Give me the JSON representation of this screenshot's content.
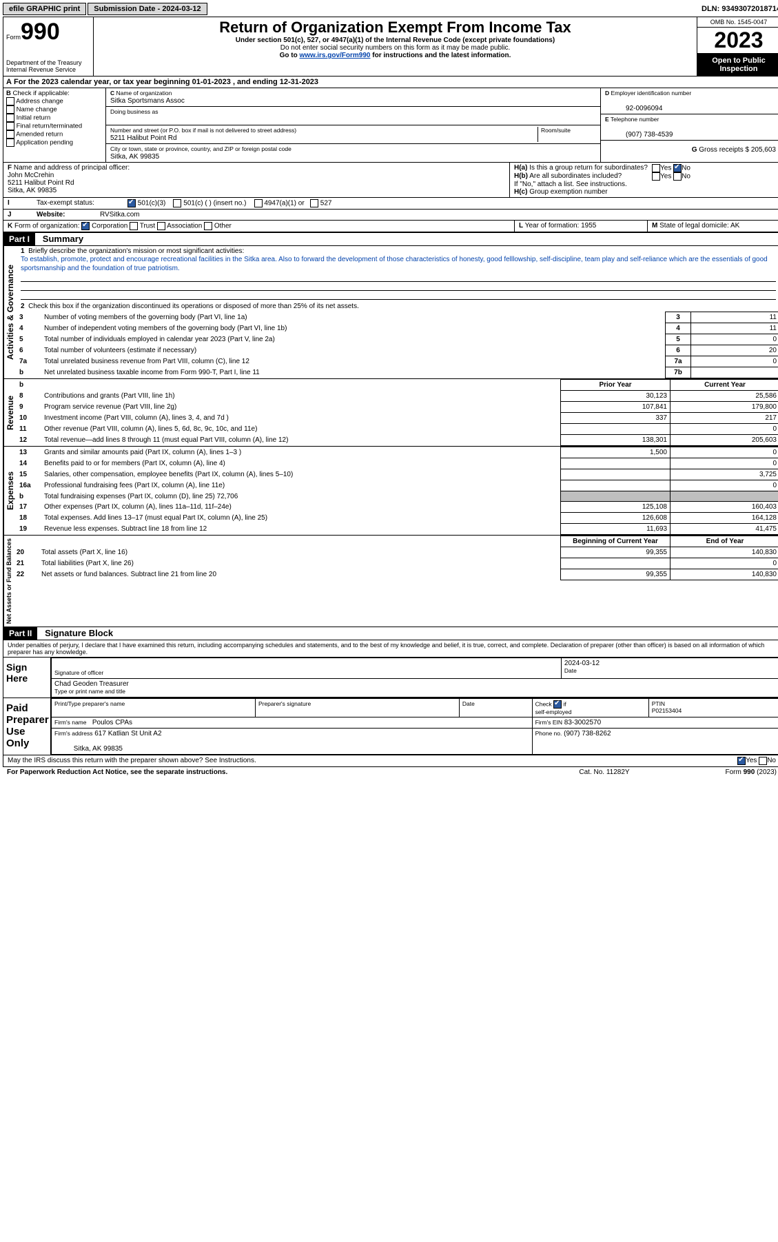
{
  "topbar": {
    "efile": "efile GRAPHIC print",
    "submission_label": "Submission Date - 2024-03-12",
    "dln": "DLN: 93493072018714"
  },
  "header": {
    "form_prefix": "Form",
    "form_number": "990",
    "dept": "Department of the Treasury",
    "irs": "Internal Revenue Service",
    "title": "Return of Organization Exempt From Income Tax",
    "subtitle": "Under section 501(c), 527, or 4947(a)(1) of the Internal Revenue Code (except private foundations)",
    "ssn_note": "Do not enter social security numbers on this form as it may be made public.",
    "goto": "Go to ",
    "goto_link": "www.irs.gov/Form990",
    "goto_suffix": " for instructions and the latest information.",
    "omb": "OMB No. 1545-0047",
    "year": "2023",
    "inspect": "Open to Public Inspection"
  },
  "a": {
    "text": "For the 2023 calendar year, or tax year beginning 01-01-2023   , and ending 12-31-2023"
  },
  "b": {
    "label": "Check if applicable:",
    "items": [
      "Address change",
      "Name change",
      "Initial return",
      "Final return/terminated",
      "Amended return",
      "Application pending"
    ]
  },
  "c": {
    "name_label": "Name of organization",
    "name": "Sitka Sportsmans Assoc",
    "dba_label": "Doing business as",
    "dba": "",
    "street_label": "Number and street (or P.O. box if mail is not delivered to street address)",
    "suite_label": "Room/suite",
    "street": "5211 Halibut Point Rd",
    "city_label": "City or town, state or province, country, and ZIP or foreign postal code",
    "city": "Sitka, AK  99835"
  },
  "d": {
    "label": "Employer identification number",
    "value": "92-0096094"
  },
  "e": {
    "label": "Telephone number",
    "value": "(907) 738-4539"
  },
  "g": {
    "label": "Gross receipts $",
    "value": "205,603"
  },
  "f": {
    "label": "Name and address of principal officer:",
    "name": "John McCrehin",
    "street": "5211 Halibut Point Rd",
    "city": "Sitka, AK  99835"
  },
  "h": {
    "a_label": "Is this a group return for subordinates?",
    "b_label": "Are all subordinates included?",
    "ifno": "If \"No,\" attach a list. See instructions.",
    "c_label": "Group exemption number",
    "yes": "Yes",
    "no": "No"
  },
  "i": {
    "label": "Tax-exempt status:",
    "opt1": "501(c)(3)",
    "opt2": "501(c) (  ) (insert no.)",
    "opt3": "4947(a)(1) or",
    "opt4": "527"
  },
  "j": {
    "label": "Website:",
    "value": "RVSitka.com"
  },
  "k": {
    "label": "Form of organization:",
    "corp": "Corporation",
    "trust": "Trust",
    "assoc": "Association",
    "other": "Other"
  },
  "l": {
    "label": "Year of formation:",
    "value": "1955"
  },
  "m": {
    "label": "State of legal domicile:",
    "value": "AK"
  },
  "part1": {
    "header": "Part I",
    "title": "Summary"
  },
  "mission": {
    "label": "Briefly describe the organization's mission or most significant activities:",
    "text": "To establish, promote, protect and encourage recreational facilities in the Sitka area. Also to forward the development of those characteristics of honesty, good felllowship, self-discipline, team play and self-reliance which are the essentials of good sportsmanship and the foundation of true patriotism."
  },
  "line2": "Check this box      if the organization discontinued its operations or disposed of more than 25% of its net assets.",
  "governance": {
    "vert": "Activities & Governance",
    "rows": [
      {
        "n": "3",
        "txt": "Number of voting members of the governing body (Part VI, line 1a)",
        "col": "3",
        "val": "11"
      },
      {
        "n": "4",
        "txt": "Number of independent voting members of the governing body (Part VI, line 1b)",
        "col": "4",
        "val": "11"
      },
      {
        "n": "5",
        "txt": "Total number of individuals employed in calendar year 2023 (Part V, line 2a)",
        "col": "5",
        "val": "0"
      },
      {
        "n": "6",
        "txt": "Total number of volunteers (estimate if necessary)",
        "col": "6",
        "val": "20"
      },
      {
        "n": "7a",
        "txt": "Total unrelated business revenue from Part VIII, column (C), line 12",
        "col": "7a",
        "val": "0"
      },
      {
        "n": "b",
        "txt": "Net unrelated business taxable income from Form 990-T, Part I, line 11",
        "col": "7b",
        "val": ""
      }
    ]
  },
  "revenue": {
    "vert": "Revenue",
    "prior": "Prior Year",
    "current": "Current Year",
    "rows": [
      {
        "n": "8",
        "txt": "Contributions and grants (Part VIII, line 1h)",
        "p": "30,123",
        "c": "25,586"
      },
      {
        "n": "9",
        "txt": "Program service revenue (Part VIII, line 2g)",
        "p": "107,841",
        "c": "179,800"
      },
      {
        "n": "10",
        "txt": "Investment income (Part VIII, column (A), lines 3, 4, and 7d )",
        "p": "337",
        "c": "217"
      },
      {
        "n": "11",
        "txt": "Other revenue (Part VIII, column (A), lines 5, 6d, 8c, 9c, 10c, and 11e)",
        "p": "",
        "c": "0"
      },
      {
        "n": "12",
        "txt": "Total revenue—add lines 8 through 11 (must equal Part VIII, column (A), line 12)",
        "p": "138,301",
        "c": "205,603"
      }
    ]
  },
  "expenses": {
    "vert": "Expenses",
    "rows": [
      {
        "n": "13",
        "txt": "Grants and similar amounts paid (Part IX, column (A), lines 1–3 )",
        "p": "1,500",
        "c": "0"
      },
      {
        "n": "14",
        "txt": "Benefits paid to or for members (Part IX, column (A), line 4)",
        "p": "",
        "c": "0"
      },
      {
        "n": "15",
        "txt": "Salaries, other compensation, employee benefits (Part IX, column (A), lines 5–10)",
        "p": "",
        "c": "3,725"
      },
      {
        "n": "16a",
        "txt": "Professional fundraising fees (Part IX, column (A), line 11e)",
        "p": "",
        "c": "0"
      },
      {
        "n": "b",
        "txt": "Total fundraising expenses (Part IX, column (D), line 25) 72,706",
        "p": "SHADE",
        "c": "SHADE"
      },
      {
        "n": "17",
        "txt": "Other expenses (Part IX, column (A), lines 11a–11d, 11f–24e)",
        "p": "125,108",
        "c": "160,403"
      },
      {
        "n": "18",
        "txt": "Total expenses. Add lines 13–17 (must equal Part IX, column (A), line 25)",
        "p": "126,608",
        "c": "164,128"
      },
      {
        "n": "19",
        "txt": "Revenue less expenses. Subtract line 18 from line 12",
        "p": "11,693",
        "c": "41,475"
      }
    ]
  },
  "netassets": {
    "vert": "Net Assets or Fund Balances",
    "bcy": "Beginning of Current Year",
    "eoy": "End of Year",
    "rows": [
      {
        "n": "20",
        "txt": "Total assets (Part X, line 16)",
        "p": "99,355",
        "c": "140,830"
      },
      {
        "n": "21",
        "txt": "Total liabilities (Part X, line 26)",
        "p": "",
        "c": "0"
      },
      {
        "n": "22",
        "txt": "Net assets or fund balances. Subtract line 21 from line 20",
        "p": "99,355",
        "c": "140,830"
      }
    ]
  },
  "part2": {
    "header": "Part II",
    "title": "Signature Block"
  },
  "perjury": "Under penalties of perjury, I declare that I have examined this return, including accompanying schedules and statements, and to the best of my knowledge and belief, it is true, correct, and complete. Declaration of preparer (other than officer) is based on all information of which preparer has any knowledge.",
  "sign": {
    "label": "Sign Here",
    "sig": "Signature of officer",
    "date_label": "Date",
    "date": "2024-03-12",
    "name": "Chad Geoden  Treasurer",
    "typed": "Type or print name and title"
  },
  "preparer": {
    "label": "Paid Preparer Use Only",
    "h_name": "Print/Type preparer's name",
    "h_sig": "Preparer's signature",
    "h_date": "Date",
    "check": "Check",
    "if": "if",
    "self": "self-employed",
    "ptin_label": "PTIN",
    "ptin": "P02153404",
    "firm_label": "Firm's name",
    "firm": "Poulos CPAs",
    "ein_label": "Firm's EIN",
    "ein": "83-3002570",
    "addr_label": "Firm's address",
    "addr": "617 Katlian St Unit A2",
    "city": "Sitka, AK  99835",
    "phone_label": "Phone no.",
    "phone": "(907) 738-8262"
  },
  "discuss": "May the IRS discuss this return with the preparer shown above? See Instructions.",
  "footer": {
    "pra": "For Paperwork Reduction Act Notice, see the separate instructions.",
    "cat": "Cat. No. 11282Y",
    "form": "Form 990 (2023)"
  }
}
